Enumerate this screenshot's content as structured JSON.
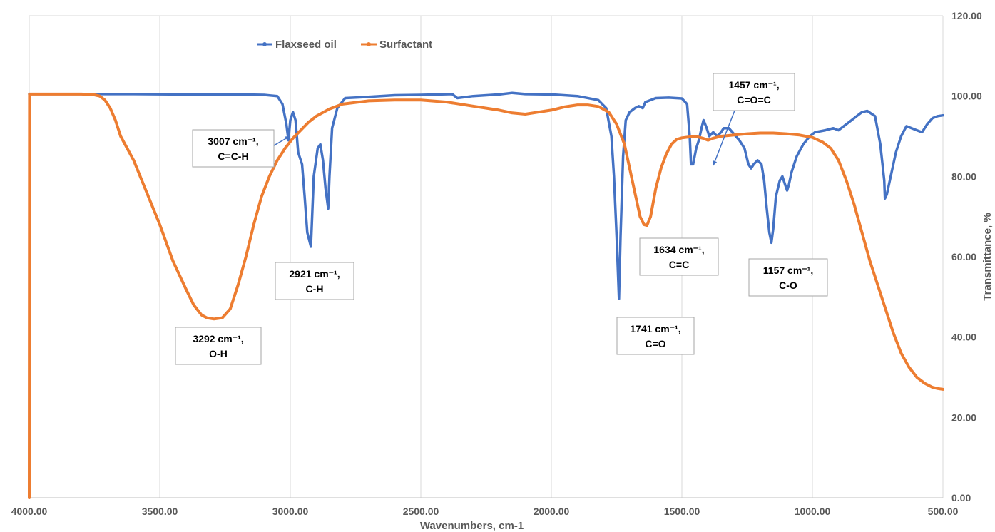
{
  "chart_data": {
    "type": "line",
    "title": "",
    "xlabel": "Wavenumbers, cm-1",
    "ylabel": "Transmittance, %",
    "xlim": [
      4000,
      500
    ],
    "ylim": [
      0,
      120
    ],
    "x_reversed": true,
    "y_axis_side": "right",
    "grid": "vertical",
    "legend_position": "top-left",
    "x_ticks": [
      "4000.00",
      "3500.00",
      "3000.00",
      "2500.00",
      "2000.00",
      "1500.00",
      "1000.00",
      "500.00"
    ],
    "y_ticks": [
      "0.00",
      "20.00",
      "40.00",
      "60.00",
      "80.00",
      "100.00",
      "120.00"
    ],
    "colors": {
      "Flaxseed oil": "#4472c4",
      "Surfactant": "#ed7d31"
    },
    "series": [
      {
        "name": "Flaxseed oil",
        "points": [
          [
            4000,
            100.5
          ],
          [
            3800,
            100.5
          ],
          [
            3600,
            100.5
          ],
          [
            3400,
            100.4
          ],
          [
            3200,
            100.4
          ],
          [
            3100,
            100.3
          ],
          [
            3050,
            100
          ],
          [
            3030,
            98
          ],
          [
            3015,
            93
          ],
          [
            3007,
            89
          ],
          [
            3000,
            94
          ],
          [
            2990,
            96
          ],
          [
            2980,
            94
          ],
          [
            2970,
            86
          ],
          [
            2955,
            83
          ],
          [
            2945,
            75
          ],
          [
            2935,
            66
          ],
          [
            2921,
            62.5
          ],
          [
            2910,
            80
          ],
          [
            2895,
            87
          ],
          [
            2885,
            88
          ],
          [
            2875,
            84
          ],
          [
            2865,
            77
          ],
          [
            2855,
            72
          ],
          [
            2850,
            80
          ],
          [
            2840,
            92
          ],
          [
            2820,
            97
          ],
          [
            2790,
            99.5
          ],
          [
            2700,
            99.8
          ],
          [
            2600,
            100.2
          ],
          [
            2500,
            100.3
          ],
          [
            2380,
            100.5
          ],
          [
            2360,
            99.5
          ],
          [
            2300,
            100
          ],
          [
            2200,
            100.4
          ],
          [
            2150,
            100.8
          ],
          [
            2100,
            100.5
          ],
          [
            2000,
            100.4
          ],
          [
            1900,
            100
          ],
          [
            1820,
            99
          ],
          [
            1790,
            97
          ],
          [
            1770,
            90
          ],
          [
            1760,
            80
          ],
          [
            1750,
            65
          ],
          [
            1741,
            49.5
          ],
          [
            1735,
            65
          ],
          [
            1725,
            85
          ],
          [
            1715,
            94
          ],
          [
            1700,
            96
          ],
          [
            1680,
            97
          ],
          [
            1665,
            97.5
          ],
          [
            1650,
            97
          ],
          [
            1640,
            98.5
          ],
          [
            1600,
            99.5
          ],
          [
            1550,
            99.6
          ],
          [
            1500,
            99.4
          ],
          [
            1480,
            98
          ],
          [
            1470,
            90
          ],
          [
            1465,
            83
          ],
          [
            1457,
            83
          ],
          [
            1445,
            87
          ],
          [
            1435,
            89
          ],
          [
            1425,
            92
          ],
          [
            1417,
            94
          ],
          [
            1405,
            92
          ],
          [
            1395,
            90
          ],
          [
            1380,
            91
          ],
          [
            1365,
            90
          ],
          [
            1350,
            91
          ],
          [
            1340,
            92
          ],
          [
            1320,
            92
          ],
          [
            1300,
            90.5
          ],
          [
            1280,
            89
          ],
          [
            1260,
            87
          ],
          [
            1245,
            83
          ],
          [
            1235,
            82
          ],
          [
            1225,
            83
          ],
          [
            1210,
            84
          ],
          [
            1195,
            83
          ],
          [
            1185,
            79
          ],
          [
            1175,
            72
          ],
          [
            1165,
            66
          ],
          [
            1157,
            63.5
          ],
          [
            1150,
            67
          ],
          [
            1140,
            75
          ],
          [
            1125,
            79
          ],
          [
            1115,
            80
          ],
          [
            1105,
            78
          ],
          [
            1097,
            76.5
          ],
          [
            1090,
            78
          ],
          [
            1080,
            81
          ],
          [
            1060,
            85
          ],
          [
            1035,
            88
          ],
          [
            1010,
            90
          ],
          [
            990,
            91
          ],
          [
            950,
            91.5
          ],
          [
            920,
            92
          ],
          [
            900,
            91.5
          ],
          [
            870,
            93
          ],
          [
            850,
            94
          ],
          [
            830,
            95
          ],
          [
            810,
            96
          ],
          [
            790,
            96.3
          ],
          [
            760,
            95
          ],
          [
            740,
            88
          ],
          [
            725,
            79
          ],
          [
            722,
            74.5
          ],
          [
            715,
            75.5
          ],
          [
            700,
            80
          ],
          [
            680,
            86
          ],
          [
            660,
            90
          ],
          [
            640,
            92.5
          ],
          [
            620,
            92
          ],
          [
            600,
            91.5
          ],
          [
            580,
            91
          ],
          [
            560,
            93
          ],
          [
            540,
            94.5
          ],
          [
            520,
            95
          ],
          [
            500,
            95.2
          ]
        ]
      },
      {
        "name": "Surfactant",
        "points": [
          [
            4000,
            0
          ],
          [
            3999,
            100.5
          ],
          [
            3900,
            100.5
          ],
          [
            3800,
            100.5
          ],
          [
            3750,
            100.3
          ],
          [
            3730,
            100
          ],
          [
            3710,
            99
          ],
          [
            3690,
            97
          ],
          [
            3670,
            94
          ],
          [
            3650,
            90
          ],
          [
            3600,
            84
          ],
          [
            3550,
            76
          ],
          [
            3500,
            68
          ],
          [
            3450,
            59
          ],
          [
            3400,
            52
          ],
          [
            3370,
            48
          ],
          [
            3340,
            45.5
          ],
          [
            3320,
            44.8
          ],
          [
            3292,
            44.5
          ],
          [
            3260,
            44.8
          ],
          [
            3230,
            47
          ],
          [
            3200,
            53
          ],
          [
            3170,
            60
          ],
          [
            3140,
            68
          ],
          [
            3110,
            75
          ],
          [
            3080,
            80
          ],
          [
            3050,
            84
          ],
          [
            3020,
            87
          ],
          [
            2990,
            89.5
          ],
          [
            2960,
            91.5
          ],
          [
            2930,
            93.5
          ],
          [
            2900,
            95
          ],
          [
            2850,
            96.8
          ],
          [
            2800,
            98
          ],
          [
            2700,
            98.8
          ],
          [
            2600,
            99
          ],
          [
            2500,
            99
          ],
          [
            2400,
            98.5
          ],
          [
            2300,
            97.5
          ],
          [
            2200,
            96.5
          ],
          [
            2150,
            95.8
          ],
          [
            2100,
            95.5
          ],
          [
            2050,
            96
          ],
          [
            2000,
            96.5
          ],
          [
            1950,
            97.3
          ],
          [
            1900,
            97.8
          ],
          [
            1860,
            97.8
          ],
          [
            1820,
            97.4
          ],
          [
            1780,
            96
          ],
          [
            1750,
            93
          ],
          [
            1720,
            88
          ],
          [
            1700,
            82
          ],
          [
            1680,
            76
          ],
          [
            1660,
            70
          ],
          [
            1645,
            68
          ],
          [
            1634,
            67.8
          ],
          [
            1620,
            70
          ],
          [
            1600,
            77
          ],
          [
            1580,
            82
          ],
          [
            1560,
            85.5
          ],
          [
            1540,
            88
          ],
          [
            1520,
            89.2
          ],
          [
            1500,
            89.6
          ],
          [
            1450,
            90
          ],
          [
            1420,
            89.5
          ],
          [
            1400,
            89
          ],
          [
            1380,
            89.5
          ],
          [
            1350,
            90
          ],
          [
            1300,
            90.3
          ],
          [
            1250,
            90.6
          ],
          [
            1200,
            90.8
          ],
          [
            1150,
            90.8
          ],
          [
            1100,
            90.6
          ],
          [
            1050,
            90.3
          ],
          [
            1000,
            89.7
          ],
          [
            960,
            88.5
          ],
          [
            930,
            87
          ],
          [
            900,
            84
          ],
          [
            870,
            79
          ],
          [
            840,
            73
          ],
          [
            810,
            66
          ],
          [
            780,
            59
          ],
          [
            750,
            53
          ],
          [
            720,
            47
          ],
          [
            690,
            41
          ],
          [
            660,
            36
          ],
          [
            630,
            32.5
          ],
          [
            600,
            30
          ],
          [
            570,
            28.5
          ],
          [
            540,
            27.5
          ],
          [
            520,
            27.2
          ],
          [
            500,
            27
          ]
        ]
      }
    ],
    "annotations": [
      {
        "label": "3007 cm⁻¹,",
        "sub": "C=C-H",
        "x": 3007,
        "y": 89,
        "arrow": true
      },
      {
        "label": "2921 cm⁻¹,",
        "sub": "C-H",
        "x": 2921,
        "y": 62.5,
        "arrow": false
      },
      {
        "label": "3292 cm⁻¹,",
        "sub": "O-H",
        "x": 3292,
        "y": 44.5,
        "arrow": false
      },
      {
        "label": "1741 cm⁻¹,",
        "sub": "C=O",
        "x": 1741,
        "y": 49.5,
        "arrow": false
      },
      {
        "label": "1634 cm⁻¹,",
        "sub": "C=C",
        "x": 1634,
        "y": 67.8,
        "arrow": false
      },
      {
        "label": "1457 cm⁻¹,",
        "sub": "C=O=C",
        "x": 1457,
        "y": 83,
        "arrow": true
      },
      {
        "label": "1157 cm⁻¹,",
        "sub": "C-O",
        "x": 1157,
        "y": 63.5,
        "arrow": false
      }
    ]
  }
}
